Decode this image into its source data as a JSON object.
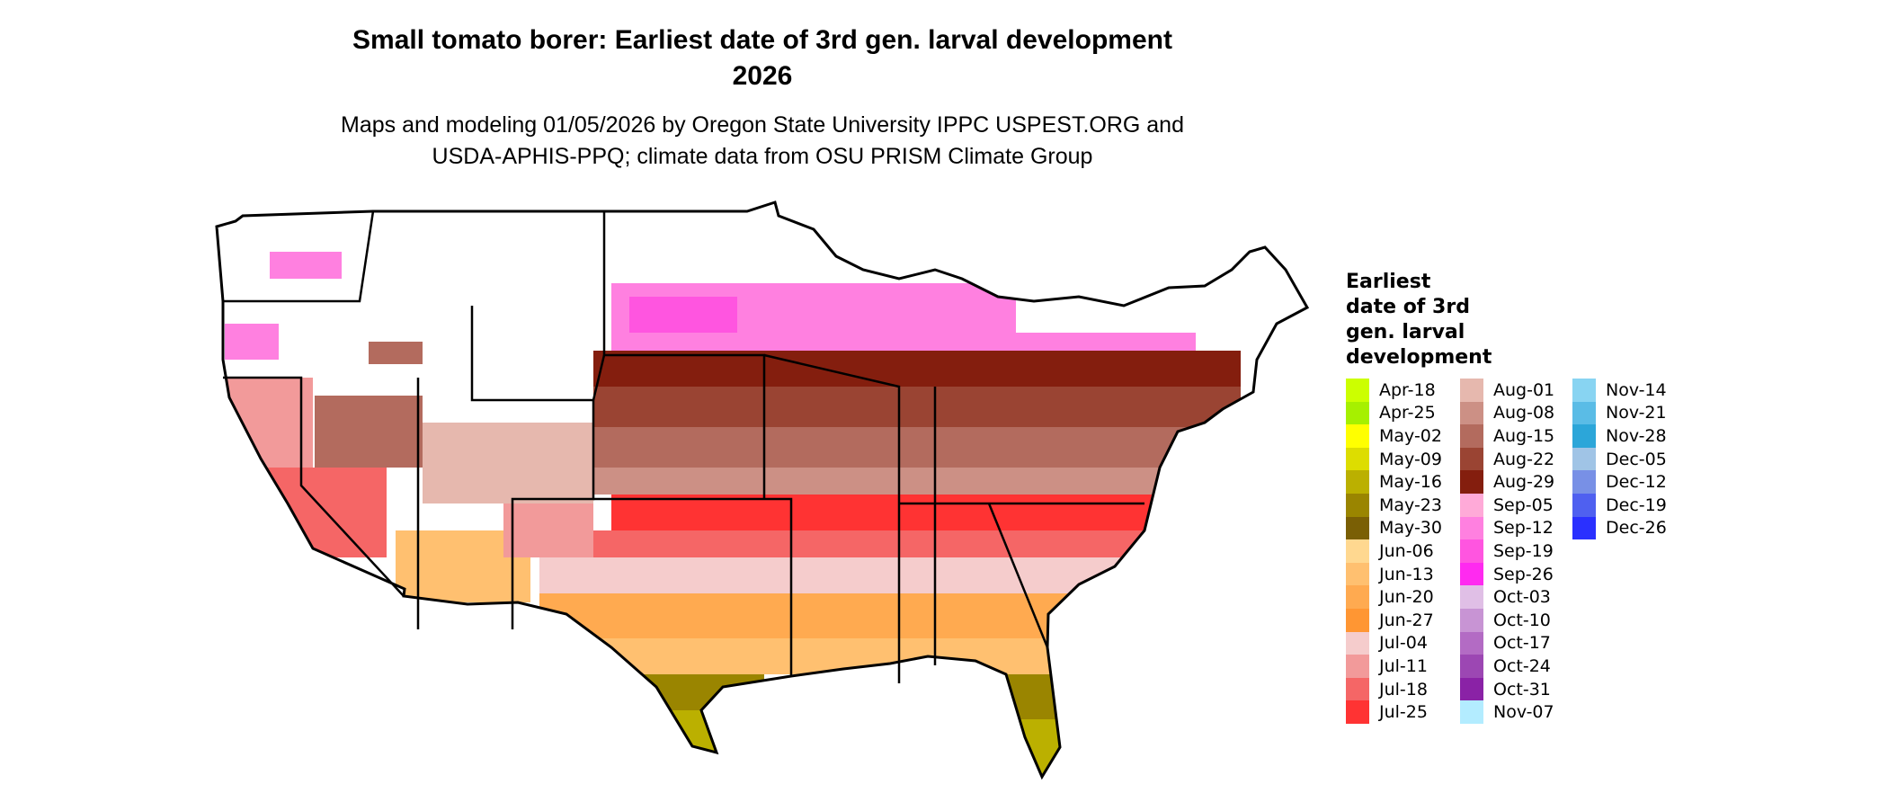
{
  "title": {
    "line1": "Small tomato borer: Earliest date of 3rd gen. larval development",
    "line2": "2026"
  },
  "subtitle": {
    "line1": "Maps and modeling 01/05/2026 by Oregon State University IPPC USPEST.ORG and",
    "line2": "USDA-APHIS-PPQ; climate data from OSU PRISM Climate Group"
  },
  "legend": {
    "title_lines": [
      "Earliest",
      "date of 3rd",
      "gen. larval",
      "development"
    ],
    "items": [
      {
        "label": "Apr-18",
        "color": "#ccff00"
      },
      {
        "label": "Apr-25",
        "color": "#a6f000"
      },
      {
        "label": "May-02",
        "color": "#ffff00"
      },
      {
        "label": "May-09",
        "color": "#dddd00"
      },
      {
        "label": "May-16",
        "color": "#bbb000"
      },
      {
        "label": "May-23",
        "color": "#9a8500"
      },
      {
        "label": "May-30",
        "color": "#7a5f05"
      },
      {
        "label": "Jun-06",
        "color": "#ffd890"
      },
      {
        "label": "Jun-13",
        "color": "#ffc070"
      },
      {
        "label": "Jun-20",
        "color": "#ffaa50"
      },
      {
        "label": "Jun-27",
        "color": "#ff9633"
      },
      {
        "label": "Jul-04",
        "color": "#f5cccc"
      },
      {
        "label": "Jul-11",
        "color": "#f29a9a"
      },
      {
        "label": "Jul-18",
        "color": "#f56666"
      },
      {
        "label": "Jul-25",
        "color": "#ff3333"
      },
      {
        "label": "Aug-01",
        "color": "#e6b8ae"
      },
      {
        "label": "Aug-08",
        "color": "#cc9085"
      },
      {
        "label": "Aug-15",
        "color": "#b36b5e"
      },
      {
        "label": "Aug-22",
        "color": "#9a4433"
      },
      {
        "label": "Aug-29",
        "color": "#841e0e"
      },
      {
        "label": "Sep-05",
        "color": "#ffaad8"
      },
      {
        "label": "Sep-12",
        "color": "#ff80e0"
      },
      {
        "label": "Sep-19",
        "color": "#ff55e0"
      },
      {
        "label": "Sep-26",
        "color": "#ff2af0"
      },
      {
        "label": "Oct-03",
        "color": "#e0bfe6"
      },
      {
        "label": "Oct-10",
        "color": "#c894d4"
      },
      {
        "label": "Oct-17",
        "color": "#b36bc4"
      },
      {
        "label": "Oct-24",
        "color": "#9c47b3"
      },
      {
        "label": "Oct-31",
        "color": "#8a22a6"
      },
      {
        "label": "Nov-07",
        "color": "#b3ecff"
      },
      {
        "label": "Nov-14",
        "color": "#88d4f2"
      },
      {
        "label": "Nov-21",
        "color": "#5abce6"
      },
      {
        "label": "Nov-28",
        "color": "#2ca6d9"
      },
      {
        "label": "Dec-05",
        "color": "#a0c4e6"
      },
      {
        "label": "Dec-12",
        "color": "#7890e6"
      },
      {
        "label": "Dec-19",
        "color": "#4f60f0"
      },
      {
        "label": "Dec-26",
        "color": "#2a30ff"
      }
    ]
  }
}
